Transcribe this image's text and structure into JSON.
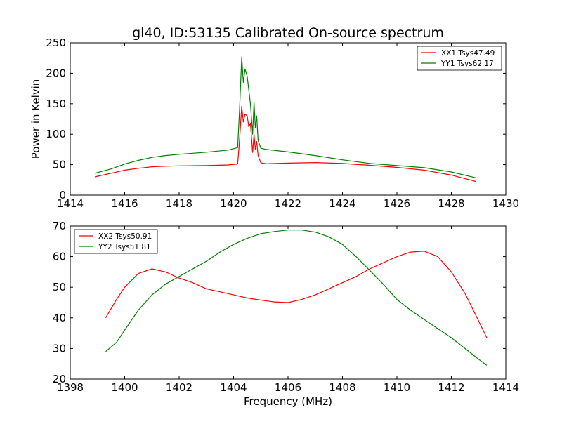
{
  "figure": {
    "title": "gl40, ID:53135 Calibrated On-source spectrum",
    "xlabel": "Frequency (MHz)"
  },
  "chart_data": [
    {
      "type": "line",
      "ylabel": "Power in Kelvin",
      "xlim": [
        1414,
        1430
      ],
      "ylim": [
        0,
        250
      ],
      "xticks": [
        1414,
        1416,
        1418,
        1420,
        1422,
        1424,
        1426,
        1428,
        1430
      ],
      "yticks": [
        0,
        50,
        100,
        150,
        200,
        250
      ],
      "legend_position": "top-right",
      "series": [
        {
          "name": "XX1 Tsys47.49",
          "color": "#ff0000",
          "points": [
            [
              1414.9,
              30
            ],
            [
              1415.5,
              36
            ],
            [
              1416.0,
              41
            ],
            [
              1416.5,
              44
            ],
            [
              1417.0,
              46.5
            ],
            [
              1417.5,
              47.5
            ],
            [
              1418.0,
              48
            ],
            [
              1419.0,
              48.5
            ],
            [
              1419.8,
              49.5
            ],
            [
              1420.15,
              51
            ],
            [
              1420.22,
              90
            ],
            [
              1420.3,
              146
            ],
            [
              1420.36,
              120
            ],
            [
              1420.42,
              133
            ],
            [
              1420.5,
              130
            ],
            [
              1420.56,
              112
            ],
            [
              1420.62,
              118
            ],
            [
              1420.7,
              70
            ],
            [
              1420.75,
              100
            ],
            [
              1420.8,
              75
            ],
            [
              1420.85,
              88
            ],
            [
              1420.9,
              65
            ],
            [
              1421.0,
              53
            ],
            [
              1421.2,
              51.5
            ],
            [
              1422.0,
              52.5
            ],
            [
              1423.0,
              53.5
            ],
            [
              1424.0,
              52
            ],
            [
              1425.0,
              49
            ],
            [
              1426.0,
              45.5
            ],
            [
              1427.0,
              41
            ],
            [
              1428.0,
              33
            ],
            [
              1428.9,
              22.5
            ]
          ]
        },
        {
          "name": "YY1 Tsys62.17",
          "color": "#008000",
          "points": [
            [
              1414.9,
              36
            ],
            [
              1415.5,
              43
            ],
            [
              1416.0,
              51
            ],
            [
              1416.5,
              57
            ],
            [
              1417.0,
              62
            ],
            [
              1417.5,
              65
            ],
            [
              1418.0,
              67
            ],
            [
              1419.0,
              70.5
            ],
            [
              1419.8,
              74
            ],
            [
              1420.15,
              78
            ],
            [
              1420.22,
              140
            ],
            [
              1420.3,
              227
            ],
            [
              1420.36,
              185
            ],
            [
              1420.42,
              207
            ],
            [
              1420.5,
              195
            ],
            [
              1420.56,
              172
            ],
            [
              1420.62,
              150
            ],
            [
              1420.7,
              100
            ],
            [
              1420.75,
              153
            ],
            [
              1420.8,
              110
            ],
            [
              1420.85,
              130
            ],
            [
              1420.9,
              90
            ],
            [
              1421.0,
              77
            ],
            [
              1421.2,
              75
            ],
            [
              1422.0,
              71
            ],
            [
              1423.0,
              65
            ],
            [
              1424.0,
              58
            ],
            [
              1425.0,
              52
            ],
            [
              1426.0,
              48.5
            ],
            [
              1427.0,
              45
            ],
            [
              1428.0,
              38
            ],
            [
              1428.9,
              28.5
            ]
          ]
        }
      ]
    },
    {
      "type": "line",
      "ylabel": "",
      "xlim": [
        1398,
        1414
      ],
      "ylim": [
        20,
        70
      ],
      "xticks": [
        1398,
        1400,
        1402,
        1404,
        1406,
        1408,
        1410,
        1412,
        1414
      ],
      "yticks": [
        20,
        30,
        40,
        50,
        60,
        70
      ],
      "legend_position": "top-left",
      "series": [
        {
          "name": "XX2 Tsys50.91",
          "color": "#ff0000",
          "points": [
            [
              1399.3,
              40
            ],
            [
              1399.7,
              46
            ],
            [
              1400.0,
              50
            ],
            [
              1400.5,
              54.5
            ],
            [
              1401.0,
              56
            ],
            [
              1401.5,
              55
            ],
            [
              1402.0,
              53
            ],
            [
              1402.5,
              51.5
            ],
            [
              1403.0,
              49.5
            ],
            [
              1403.5,
              48.5
            ],
            [
              1404.0,
              47.5
            ],
            [
              1404.5,
              46.5
            ],
            [
              1405.0,
              45.8
            ],
            [
              1405.5,
              45.2
            ],
            [
              1406.0,
              45
            ],
            [
              1406.5,
              46
            ],
            [
              1407.0,
              47.5
            ],
            [
              1407.5,
              49.5
            ],
            [
              1408.0,
              51.5
            ],
            [
              1408.5,
              53.5
            ],
            [
              1409.0,
              56
            ],
            [
              1409.5,
              58
            ],
            [
              1410.0,
              60
            ],
            [
              1410.5,
              61.5
            ],
            [
              1411.0,
              61.8
            ],
            [
              1411.5,
              60
            ],
            [
              1412.0,
              55
            ],
            [
              1412.5,
              48
            ],
            [
              1413.0,
              39
            ],
            [
              1413.3,
              33.5
            ]
          ]
        },
        {
          "name": "YY2 Tsys51.81",
          "color": "#008000",
          "points": [
            [
              1399.3,
              29
            ],
            [
              1399.7,
              32
            ],
            [
              1400.0,
              36
            ],
            [
              1400.5,
              42.5
            ],
            [
              1401.0,
              47.5
            ],
            [
              1401.5,
              51
            ],
            [
              1402.0,
              53.5
            ],
            [
              1402.5,
              56
            ],
            [
              1403.0,
              58.5
            ],
            [
              1403.5,
              61.5
            ],
            [
              1404.0,
              64
            ],
            [
              1404.5,
              66
            ],
            [
              1405.0,
              67.5
            ],
            [
              1405.5,
              68.2
            ],
            [
              1406.0,
              68.7
            ],
            [
              1406.5,
              68.7
            ],
            [
              1407.0,
              68
            ],
            [
              1407.5,
              66.5
            ],
            [
              1408.0,
              64
            ],
            [
              1408.5,
              60
            ],
            [
              1409.0,
              55.5
            ],
            [
              1409.5,
              51
            ],
            [
              1410.0,
              46
            ],
            [
              1410.5,
              42.5
            ],
            [
              1411.0,
              39.5
            ],
            [
              1411.5,
              36.5
            ],
            [
              1412.0,
              33.5
            ],
            [
              1412.5,
              30
            ],
            [
              1413.0,
              26.5
            ],
            [
              1413.3,
              24.5
            ]
          ]
        }
      ]
    }
  ]
}
